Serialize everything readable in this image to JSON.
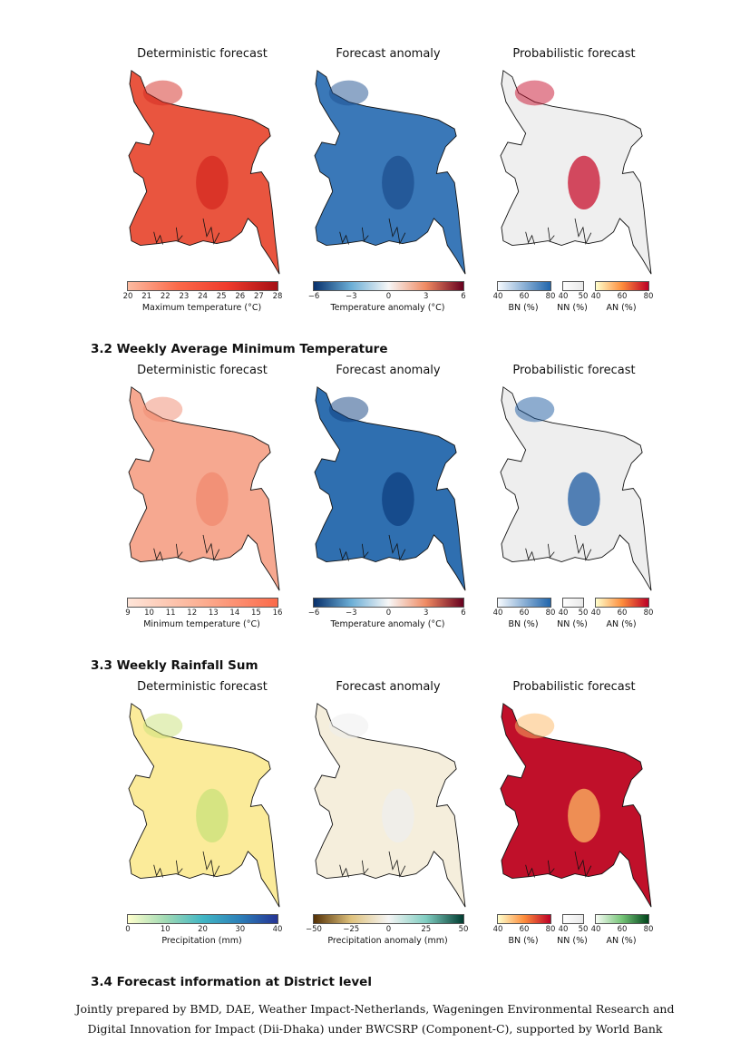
{
  "sections": [
    {
      "title": ""
    },
    {
      "title": "3.2 Weekly Average Minimum Temperature"
    },
    {
      "title": "3.3 Weekly Rainfall Sum"
    },
    {
      "title": "3.4 Forecast information at District level"
    }
  ],
  "rows": [
    {
      "panels": [
        {
          "title": "Deterministic forecast",
          "fill": "#e9553f",
          "accent": "#d42a22",
          "colorbar": {
            "label": "Maximum temperature (°C)",
            "ticks": [
              "20",
              "21",
              "22",
              "23",
              "24",
              "25",
              "26",
              "27",
              "28"
            ],
            "colors": [
              "#fcbba1",
              "#fb6a4a",
              "#ef3b2c",
              "#a50f15"
            ]
          }
        },
        {
          "title": "Forecast anomaly",
          "fill": "#3a78b8",
          "accent": "#1d4f8f",
          "colorbar": {
            "label": "Temperature anomaly (°C)",
            "ticks": [
              "−6",
              "−3",
              "0",
              "3",
              "6"
            ],
            "colors": [
              "#08306b",
              "#6baed6",
              "#f7f7f7",
              "#ef8a62",
              "#67001f"
            ]
          }
        },
        {
          "title": "Probabilistic forecast",
          "fill": "#efefef",
          "accent": "#c8102e",
          "prob": {
            "bn": {
              "label": "BN (%)",
              "ticks": [
                "40",
                "60",
                "80"
              ],
              "colors": [
                "#f7fbff",
                "#2166ac"
              ]
            },
            "nn": {
              "label": "NN (%)",
              "ticks": [
                "40",
                "50"
              ],
              "colors": [
                "#ffffff",
                "#e8e8e8"
              ]
            },
            "an": {
              "label": "AN (%)",
              "ticks": [
                "40",
                "60",
                "80"
              ],
              "colors": [
                "#ffffcc",
                "#fd8d3c",
                "#bd0026"
              ]
            }
          }
        }
      ]
    },
    {
      "panels": [
        {
          "title": "Deterministic forecast",
          "fill": "#f6a890",
          "accent": "#f08a6f",
          "colorbar": {
            "label": "Minimum temperature (°C)",
            "ticks": [
              "9",
              "10",
              "11",
              "12",
              "13",
              "14",
              "15",
              "16"
            ],
            "colors": [
              "#fee5d9",
              "#fcae91",
              "#fb6a4a"
            ]
          }
        },
        {
          "title": "Forecast anomaly",
          "fill": "#2f6fb0",
          "accent": "#0f3f80",
          "colorbar": {
            "label": "Temperature anomaly (°C)",
            "ticks": [
              "−6",
              "−3",
              "0",
              "3",
              "6"
            ],
            "colors": [
              "#08306b",
              "#6baed6",
              "#f7f7f7",
              "#ef8a62",
              "#67001f"
            ]
          }
        },
        {
          "title": "Probabilistic forecast",
          "fill": "#eeeeee",
          "accent": "#1c5aa0",
          "prob": {
            "bn": {
              "label": "BN (%)",
              "ticks": [
                "40",
                "60",
                "80"
              ],
              "colors": [
                "#f7fbff",
                "#2166ac"
              ]
            },
            "nn": {
              "label": "NN (%)",
              "ticks": [
                "40",
                "50"
              ],
              "colors": [
                "#ffffff",
                "#e8e8e8"
              ]
            },
            "an": {
              "label": "AN (%)",
              "ticks": [
                "40",
                "60",
                "80"
              ],
              "colors": [
                "#ffffcc",
                "#fd8d3c",
                "#bd0026"
              ]
            }
          }
        }
      ]
    },
    {
      "panels": [
        {
          "title": "Deterministic forecast",
          "fill": "#fbeb9a",
          "accent": "#c9e27a",
          "colorbar": {
            "label": "Precipitation (mm)",
            "ticks": [
              "0",
              "10",
              "20",
              "30",
              "40"
            ],
            "colors": [
              "#ffffcc",
              "#a1dab4",
              "#41b6c4",
              "#2c7fb8",
              "#253494"
            ]
          }
        },
        {
          "title": "Forecast anomaly",
          "fill": "#f5eedc",
          "accent": "#eeeeee",
          "colorbar": {
            "label": "Precipitation anomaly (mm)",
            "ticks": [
              "−50",
              "−25",
              "0",
              "25",
              "50"
            ],
            "colors": [
              "#543005",
              "#dfc27d",
              "#f5f5f5",
              "#80cdc1",
              "#003c30"
            ]
          }
        },
        {
          "title": "Probabilistic forecast",
          "fill": "#c0102a",
          "accent": "#fdb863",
          "prob": {
            "bn": {
              "label": "BN (%)",
              "ticks": [
                "40",
                "60",
                "80"
              ],
              "colors": [
                "#ffffcc",
                "#fd8d3c",
                "#bd0026"
              ]
            },
            "nn": {
              "label": "NN (%)",
              "ticks": [
                "40",
                "50"
              ],
              "colors": [
                "#ffffff",
                "#e8e8e8"
              ]
            },
            "an": {
              "label": "AN (%)",
              "ticks": [
                "40",
                "60",
                "80"
              ],
              "colors": [
                "#f7fcf5",
                "#74c476",
                "#00441b"
              ]
            }
          }
        }
      ]
    }
  ],
  "footer": {
    "line1": "Jointly prepared by BMD, DAE, Weather Impact-Netherlands, Wageningen Environmental Research and",
    "line2": "Digital Innovation for Impact (Dii-Dhaka) under BWCSRP (Component-C), supported by World Bank"
  }
}
